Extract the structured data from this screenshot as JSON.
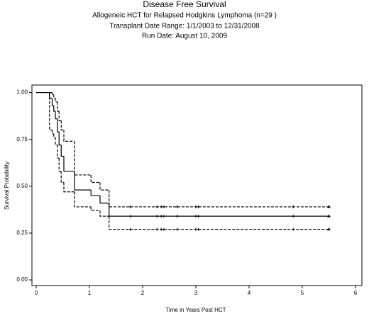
{
  "chart_data": {
    "type": "step",
    "title": "Disease Free Survival",
    "subtitle": [
      "Allogeneic HCT for Relapsed Hodgkins Lymphoma (n=29 )",
      "Transplant Date Range: 1/1/2003 to 12/31/2008",
      "Run Date: August 10, 2009"
    ],
    "x_label": "Time in Years Post HCT",
    "y_label": "Survival Probability",
    "x": [
      0,
      0.25,
      0.3,
      0.33,
      0.36,
      0.4,
      0.43,
      0.47,
      0.52,
      0.72,
      1.03,
      1.2,
      1.37,
      5.5
    ],
    "series": [
      {
        "color": "#000000",
        "dashed": false,
        "values": [
          1,
          0.97,
          0.93,
          0.9,
          0.86,
          0.79,
          0.72,
          0.66,
          0.58,
          0.48,
          0.45,
          0.41,
          0.34,
          0.34
        ]
      },
      {
        "color": "#000000",
        "dashed": true,
        "values": [
          1,
          1,
          0.99,
          0.97,
          0.95,
          0.9,
          0.85,
          0.8,
          0.74,
          0.56,
          0.52,
          0.48,
          0.39,
          0.39
        ]
      },
      {
        "color": "#000000",
        "dashed": true,
        "values": [
          1,
          0.8,
          0.78,
          0.76,
          0.72,
          0.65,
          0.58,
          0.52,
          0.47,
          0.39,
          0.37,
          0.34,
          0.27,
          0.27
        ]
      }
    ],
    "censored": [
      1.77,
      2.27,
      2.35,
      2.4,
      2.65,
      3.0,
      3.05,
      4.83
    ],
    "xlim": [
      -0.08,
      6.12
    ],
    "ylim": [
      -0.03,
      1.04
    ],
    "xticks": [
      0,
      1,
      2,
      3,
      4,
      5,
      6
    ],
    "yticks": [
      {
        "value": 1,
        "label": "1.00"
      },
      {
        "value": 0.75,
        "label": "0.75"
      },
      {
        "value": 0.5,
        "label": "0.50"
      },
      {
        "value": 0.25,
        "label": "0.25"
      },
      {
        "value": 0,
        "label": "0.00"
      }
    ]
  }
}
